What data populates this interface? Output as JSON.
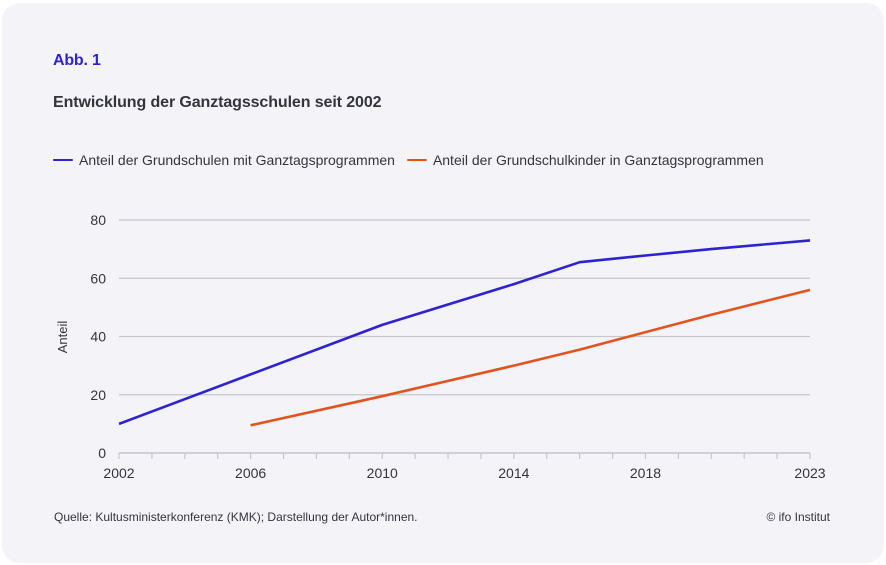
{
  "figure": {
    "label": "Abb. 1",
    "title": "Entwicklung der Ganztagsschulen seit 2002",
    "source": "Quelle: Kultusministerkonferenz (KMK); Darstellung der Autor*innen.",
    "copyright": "© ifo Institut"
  },
  "colors": {
    "series_blue": "#2f22cf",
    "series_orange": "#e2541f",
    "grid": "#c5c6ce",
    "text": "#34343c",
    "card_background": "#f3f3f8"
  },
  "chart_data": {
    "type": "line",
    "title": "Entwicklung der Ganztagsschulen seit 2002",
    "xlabel": "",
    "ylabel": "Anteil",
    "xlim": [
      2002,
      2023
    ],
    "ylim": [
      0,
      80
    ],
    "x_tick_labels": [
      "2002",
      "2006",
      "2010",
      "2014",
      "2018",
      "2023"
    ],
    "x_ticks": [
      2002,
      2006,
      2010,
      2014,
      2018,
      2023
    ],
    "x_minor_ticks_every": 1,
    "y_ticks": [
      0,
      20,
      40,
      60,
      80
    ],
    "y_tick_labels": [
      "0",
      "20",
      "40",
      "60",
      "80"
    ],
    "grid": true,
    "legend_position": "top-left",
    "series": [
      {
        "name": "Anteil der Grundschulen mit Ganztagsprogrammen",
        "color": "#2f22cf",
        "x": [
          2002,
          2006,
          2010,
          2014,
          2016,
          2018,
          2020,
          2023
        ],
        "values": [
          10,
          27,
          44,
          58,
          65.5,
          67.8,
          70,
          73
        ]
      },
      {
        "name": "Anteil der Grundschulkinder in Ganztagsprogrammen",
        "color": "#e2541f",
        "x": [
          2006,
          2010,
          2014,
          2016,
          2017,
          2020,
          2023
        ],
        "values": [
          9.5,
          19.5,
          30,
          35.5,
          38.5,
          47.5,
          56
        ]
      }
    ]
  }
}
